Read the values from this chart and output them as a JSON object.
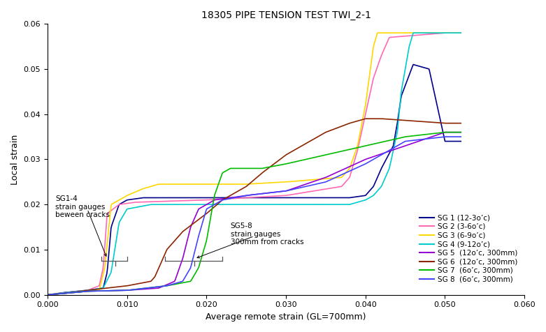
{
  "title": "18305 PIPE TENSION TEST TWI_2-1",
  "xlabel": "Average remote strain (GL=700mm)",
  "ylabel": "Local strain",
  "xlim": [
    0.0,
    0.06
  ],
  "ylim": [
    0.0,
    0.06
  ],
  "xticks": [
    0.0,
    0.01,
    0.02,
    0.03,
    0.04,
    0.05,
    0.06
  ],
  "yticks": [
    0.0,
    0.01,
    0.02,
    0.03,
    0.04,
    0.05,
    0.06
  ],
  "legend_labels": [
    "SG 1 (12-3o’c)",
    "SG 2 (3-6o’c)",
    "SG 3 (6-9o’c)",
    "SG 4 (9-12o’c)",
    "SG 5  (12o’c, 300mm)",
    "SG 6  (12o’c, 300mm)",
    "SG 7  (6o’c, 300mm)",
    "SG 8  (6o’c, 300mm)"
  ],
  "colors": [
    "#00008B",
    "#FF69B4",
    "#FFD700",
    "#00CCCC",
    "#9400D3",
    "#8B2500",
    "#00BB00",
    "#4444FF"
  ],
  "figsize": [
    7.81,
    4.76
  ],
  "dpi": 100
}
